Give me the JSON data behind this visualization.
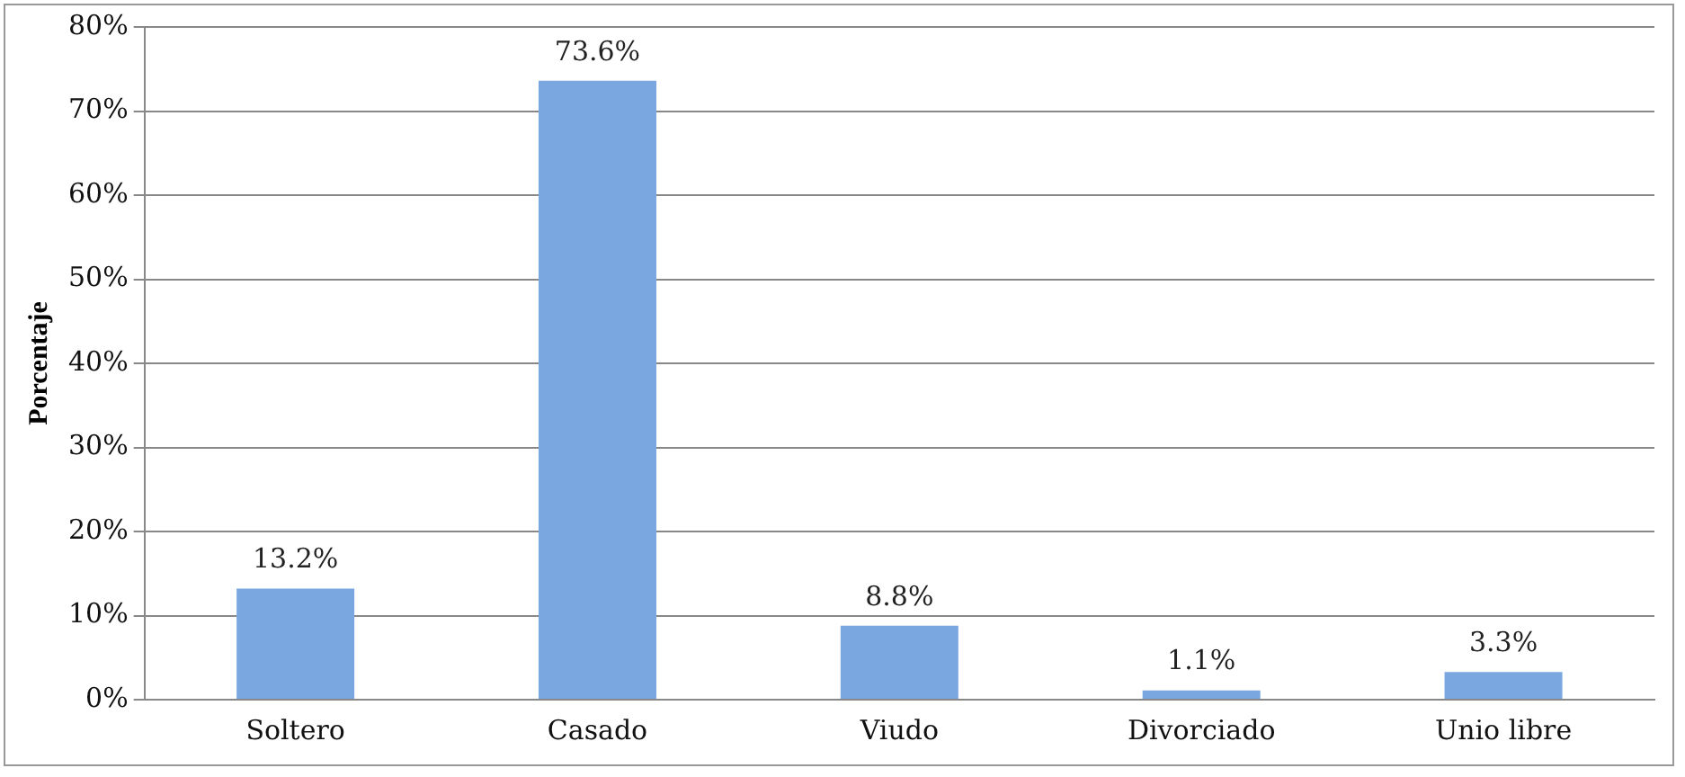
{
  "chart_data": {
    "type": "bar",
    "ylabel": "Porcentaje",
    "categories": [
      "Soltero",
      "Casado",
      "Viudo",
      "Divorciado",
      "Unio libre"
    ],
    "values": [
      13.2,
      73.6,
      8.8,
      1.1,
      3.3
    ],
    "value_labels": [
      "13.2%",
      "73.6%",
      "8.8%",
      "1.1%",
      "3.3%"
    ],
    "color": "#7ba7e1",
    "ylim": [
      0,
      80
    ],
    "yticks": [
      {
        "value": 0,
        "label": "0%"
      },
      {
        "value": 10,
        "label": "10%"
      },
      {
        "value": 20,
        "label": "20%"
      },
      {
        "value": 30,
        "label": "30%"
      },
      {
        "value": 40,
        "label": "40%"
      },
      {
        "value": 50,
        "label": "50%"
      },
      {
        "value": 60,
        "label": "60%"
      },
      {
        "value": 70,
        "label": "70%"
      },
      {
        "value": 80,
        "label": "80%"
      }
    ],
    "grid": "y",
    "legend": false
  }
}
